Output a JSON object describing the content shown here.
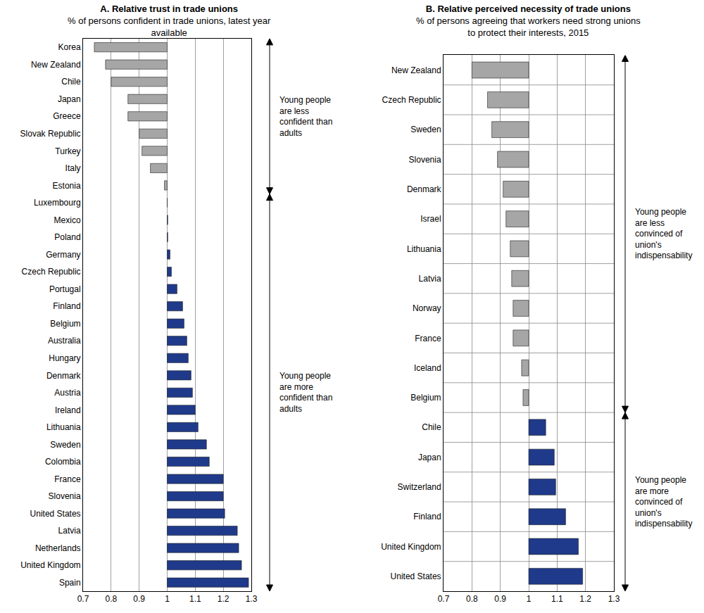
{
  "chart_data": [
    {
      "type": "bar",
      "orientation": "horizontal",
      "title": "A. Relative trust in trade unions",
      "subtitle": "% of persons confident in trade unions, latest year available",
      "categories": [
        "Korea",
        "New Zealand",
        "Chile",
        "Japan",
        "Greece",
        "Slovak Republic",
        "Turkey",
        "Italy",
        "Estonia",
        "Luxembourg",
        "Mexico",
        "Poland",
        "Germany",
        "Czech Republic",
        "Portugal",
        "Finland",
        "Belgium",
        "Australia",
        "Hungary",
        "Denmark",
        "Austria",
        "Ireland",
        "Lithuania",
        "Sweden",
        "Colombia",
        "France",
        "Slovenia",
        "United States",
        "Latvia",
        "Netherlands",
        "United Kingdom",
        "Spain"
      ],
      "values": [
        0.74,
        0.78,
        0.8,
        0.86,
        0.86,
        0.9,
        0.91,
        0.94,
        0.99,
        1.0,
        1.002,
        1.002,
        1.01,
        1.015,
        1.035,
        1.055,
        1.06,
        1.07,
        1.075,
        1.085,
        1.09,
        1.1,
        1.11,
        1.14,
        1.15,
        1.2,
        1.2,
        1.205,
        1.25,
        1.255,
        1.265,
        1.29
      ],
      "colors": [
        "#a6a6a6",
        "#a6a6a6",
        "#a6a6a6",
        "#a6a6a6",
        "#a6a6a6",
        "#a6a6a6",
        "#a6a6a6",
        "#a6a6a6",
        "#a6a6a6",
        "#1f3a8a",
        "#1f3a8a",
        "#1f3a8a",
        "#1f3a8a",
        "#1f3a8a",
        "#1f3a8a",
        "#1f3a8a",
        "#1f3a8a",
        "#1f3a8a",
        "#1f3a8a",
        "#1f3a8a",
        "#1f3a8a",
        "#1f3a8a",
        "#1f3a8a",
        "#1f3a8a",
        "#1f3a8a",
        "#1f3a8a",
        "#1f3a8a",
        "#1f3a8a",
        "#1f3a8a",
        "#1f3a8a",
        "#1f3a8a",
        "#1f3a8a"
      ],
      "base": 1,
      "xlim": [
        0.7,
        1.3
      ],
      "xticks": [
        0.7,
        0.8,
        0.9,
        1,
        1.1,
        1.2,
        1.3
      ],
      "grid": true,
      "annotations": [
        "Young people are less confident than adults",
        "Young people are more confident than adults"
      ]
    },
    {
      "type": "bar",
      "orientation": "horizontal",
      "title": "B. Relative perceived necessity of trade unions",
      "subtitle": "% of persons agreeing that workers need strong unions to protect their interests, 2015",
      "categories": [
        "New Zealand",
        "Czech Republic",
        "Sweden",
        "Slovenia",
        "Denmark",
        "Israel",
        "Lithuania",
        "Latvia",
        "Norway",
        "France",
        "Iceland",
        "Belgium",
        "Chile",
        "Japan",
        "Switzerland",
        "Finland",
        "United Kingdom",
        "United States"
      ],
      "values": [
        0.8,
        0.855,
        0.87,
        0.89,
        0.91,
        0.92,
        0.935,
        0.94,
        0.945,
        0.945,
        0.975,
        0.98,
        1.06,
        1.09,
        1.095,
        1.13,
        1.175,
        1.19
      ],
      "colors": [
        "#a6a6a6",
        "#a6a6a6",
        "#a6a6a6",
        "#a6a6a6",
        "#a6a6a6",
        "#a6a6a6",
        "#a6a6a6",
        "#a6a6a6",
        "#a6a6a6",
        "#a6a6a6",
        "#a6a6a6",
        "#a6a6a6",
        "#1f3a8a",
        "#1f3a8a",
        "#1f3a8a",
        "#1f3a8a",
        "#1f3a8a",
        "#1f3a8a"
      ],
      "base": 1,
      "xlim": [
        0.7,
        1.3
      ],
      "xticks": [
        0.7,
        0.8,
        0.9,
        1,
        1.1,
        1.2,
        1.3
      ],
      "grid": true,
      "annotations": [
        "Young people are less convinced of union's indispensability",
        "Young people are more convinced of union's indispensability"
      ]
    }
  ]
}
